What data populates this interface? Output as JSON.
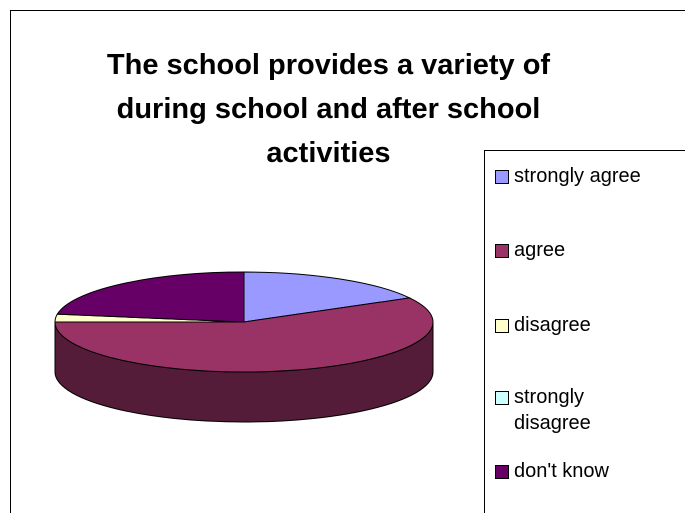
{
  "chart_data": {
    "type": "pie",
    "title": "The school provides a variety of during school and after school activities",
    "title_lines": [
      "The school provides a variety of",
      "during school and after school",
      "activities"
    ],
    "categories": [
      "strongly agree",
      "agree",
      "disagree",
      "strongly disagree",
      "don't know"
    ],
    "values": [
      17,
      58,
      2.5,
      0,
      22.5
    ],
    "colors": [
      "#9999ff",
      "#993366",
      "#ffffcc",
      "#ccffff",
      "#660066"
    ],
    "legend_placement": "right"
  },
  "legend": {
    "items": [
      {
        "label": "strongly agree",
        "color": "#9999ff"
      },
      {
        "label": "agree",
        "color": "#993366"
      },
      {
        "label": "disagree",
        "color": "#ffffcc"
      },
      {
        "label": "strongly disagree",
        "color": "#ccffff"
      },
      {
        "label": "don't know",
        "color": "#660066"
      }
    ]
  }
}
